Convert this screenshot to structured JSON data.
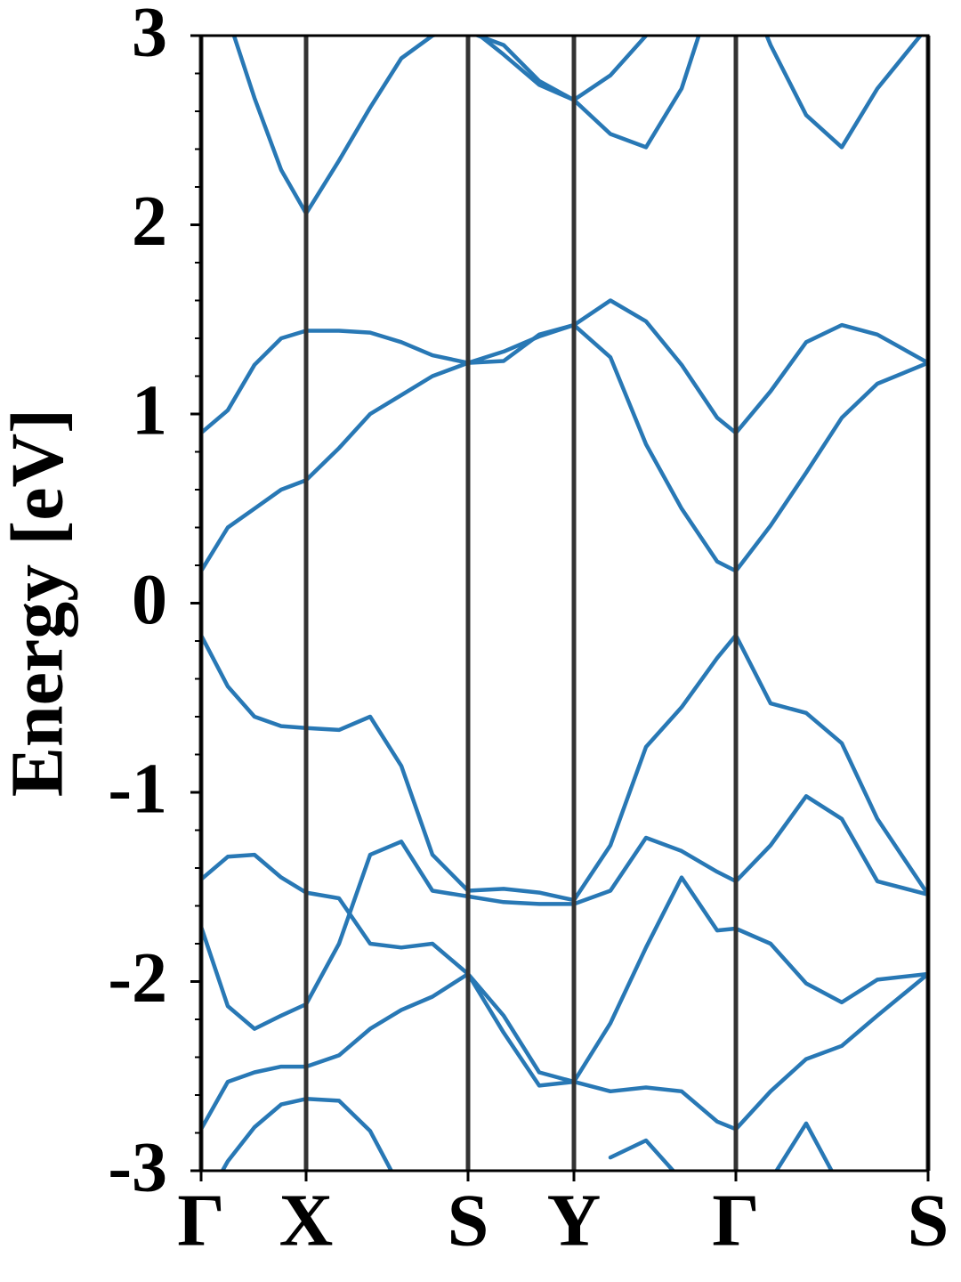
{
  "chart_data": {
    "type": "line",
    "ylabel": "Energy [eV]",
    "x": [
      0,
      0.3,
      0.6,
      0.9,
      1.18,
      1.55,
      1.9,
      2.25,
      2.6,
      3.0,
      3.4,
      3.8,
      4.19,
      4.6,
      5.0,
      5.4,
      5.8,
      6.01,
      6.4,
      6.8,
      7.2,
      7.6,
      8.17
    ],
    "xlim": [
      0,
      8.17
    ],
    "xticks": [
      {
        "value": 0,
        "label": "Γ"
      },
      {
        "value": 1.18,
        "label": "X"
      },
      {
        "value": 3.0,
        "label": "S"
      },
      {
        "value": 4.19,
        "label": "Y"
      },
      {
        "value": 6.01,
        "label": "Γ"
      },
      {
        "value": 8.17,
        "label": "S"
      }
    ],
    "ylim": [
      -3,
      3
    ],
    "yticks": [
      -3,
      -2,
      -1,
      0,
      1,
      2,
      3
    ],
    "yminorticks": [
      -2.8,
      -2.6,
      -2.4,
      -2.2,
      -1.8,
      -1.6,
      -1.4,
      -1.2,
      -0.8,
      -0.6,
      -0.4,
      -0.2,
      0.2,
      0.4,
      0.6,
      0.8,
      1.2,
      1.4,
      1.6,
      1.8,
      2.2,
      2.4,
      2.6,
      2.8
    ],
    "xgrid": true,
    "grid_color": "#333333",
    "series": [
      {
        "color": "#2878b5",
        "values": [
          0.17,
          0.4,
          0.5,
          0.6,
          0.65,
          0.82,
          1.0,
          1.1,
          1.2,
          1.27,
          1.33,
          1.41,
          1.47,
          1.3,
          0.84,
          0.5,
          0.22,
          0.17,
          0.41,
          0.69,
          0.98,
          1.16,
          1.27
        ]
      },
      {
        "color": "#2878b5",
        "values": [
          0.9,
          1.02,
          1.26,
          1.4,
          1.44,
          1.44,
          1.43,
          1.38,
          1.31,
          1.27,
          1.28,
          1.42,
          1.47,
          1.6,
          1.49,
          1.26,
          0.98,
          0.9,
          1.12,
          1.38,
          1.47,
          1.42,
          1.27
        ]
      },
      {
        "color": "#2878b5",
        "values": [
          3.4,
          3.1,
          2.67,
          2.29,
          2.06,
          2.34,
          2.62,
          2.88,
          3.0,
          3.05,
          2.9,
          2.74,
          2.66,
          2.48,
          2.41,
          2.72,
          3.3,
          3.4,
          2.95,
          2.58,
          2.41,
          2.72,
          3.05
        ]
      },
      {
        "color": "#2878b5",
        "values": [
          null,
          null,
          null,
          null,
          null,
          null,
          null,
          null,
          null,
          3.02,
          2.95,
          2.76,
          2.66,
          2.79,
          3.0,
          null,
          null,
          null,
          null,
          null,
          null,
          null,
          null
        ]
      },
      {
        "color": "#2878b5",
        "values": [
          -0.17,
          -0.44,
          -0.6,
          -0.65,
          -0.66,
          -0.67,
          -0.6,
          -0.86,
          -1.33,
          -1.52,
          -1.51,
          -1.53,
          -1.57,
          -1.28,
          -0.76,
          -0.55,
          -0.29,
          -0.17,
          -0.53,
          -0.58,
          -0.74,
          -1.14,
          -1.54
        ]
      },
      {
        "color": "#2878b5",
        "values": [
          -1.46,
          -1.34,
          -1.33,
          -1.45,
          -1.53,
          -1.56,
          -1.8,
          -1.82,
          -1.8,
          -1.96,
          -2.27,
          -2.55,
          -2.53,
          -2.58,
          -2.56,
          -2.58,
          -2.74,
          -2.78,
          -2.58,
          -2.41,
          -2.34,
          -2.18,
          -1.96
        ]
      },
      {
        "color": "#2878b5",
        "values": [
          -1.71,
          -2.13,
          -2.25,
          -2.18,
          -2.12,
          -1.8,
          -1.33,
          -1.26,
          -1.52,
          -1.55,
          -1.58,
          -1.59,
          -1.59,
          -1.52,
          -1.24,
          -1.31,
          -1.42,
          -1.47,
          -1.28,
          -1.02,
          -1.14,
          -1.47,
          -1.54
        ]
      },
      {
        "color": "#2878b5",
        "values": [
          -2.78,
          -2.53,
          -2.48,
          -2.45,
          -2.45,
          -2.39,
          -2.25,
          -2.15,
          -2.08,
          -1.96,
          -2.18,
          -2.48,
          -2.53,
          -2.22,
          -1.82,
          -1.45,
          -1.73,
          -1.72,
          -1.8,
          -2.01,
          -2.11,
          -1.99,
          -1.96
        ]
      },
      {
        "color": "#2878b5",
        "values": [
          -3.2,
          -2.95,
          -2.77,
          -2.65,
          -2.62,
          -2.63,
          -2.79,
          -3.1,
          null,
          null,
          null,
          null,
          null,
          -2.93,
          -2.84,
          -3.05,
          null,
          null,
          -3.05,
          -2.75,
          -3.1,
          null,
          null
        ]
      }
    ]
  }
}
